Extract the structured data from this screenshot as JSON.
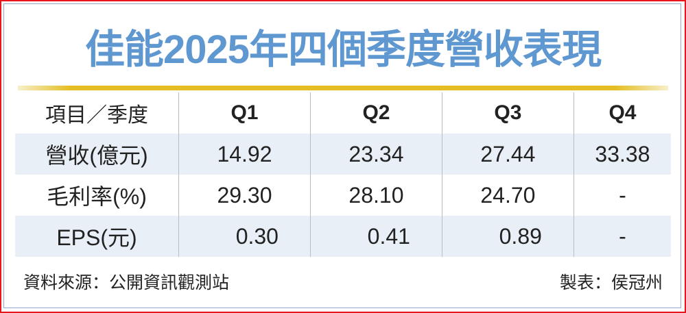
{
  "title": "佳能2025年四個季度營收表現",
  "colors": {
    "title": "#5f98d0",
    "rule": "#e5be25",
    "row_shade": "#e9eff6",
    "border": "#e8161c"
  },
  "table": {
    "headers": [
      "項目／季度",
      "Q1",
      "Q2",
      "Q3",
      "Q4"
    ],
    "rows": [
      {
        "label": "營收(億元)",
        "values": [
          "14.92",
          "23.34",
          "27.44",
          "33.38"
        ]
      },
      {
        "label": "毛利率(%)",
        "values": [
          "29.30",
          "28.10",
          "24.70",
          "-"
        ]
      },
      {
        "label": "EPS(元)",
        "values": [
          "0.30",
          "0.41",
          "0.89",
          "-"
        ]
      }
    ]
  },
  "footer": {
    "source": "資料來源：公開資訊觀測站",
    "credit": "製表：侯冠州"
  }
}
